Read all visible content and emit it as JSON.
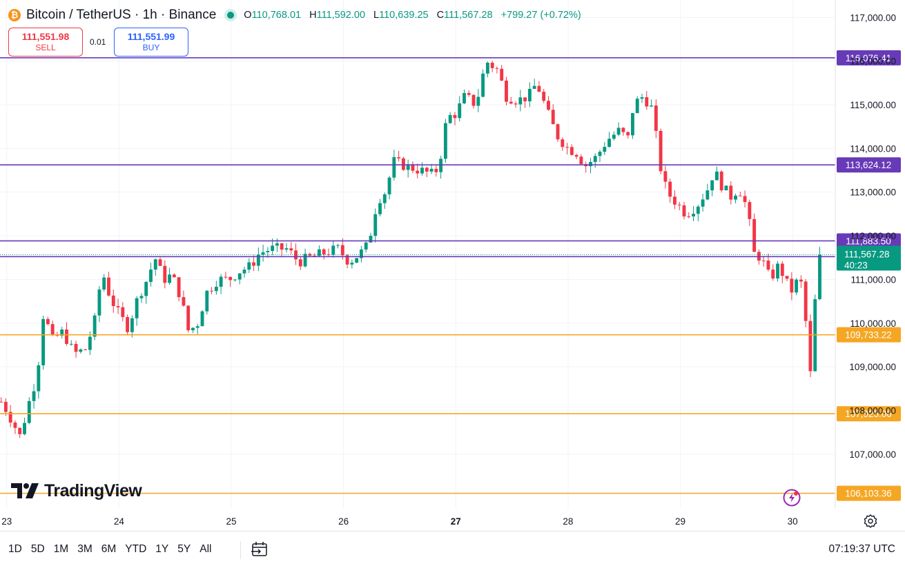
{
  "header": {
    "title": "Bitcoin / TetherUS · 1h · Binance",
    "o_label": "O",
    "o_value": "110,768.01",
    "h_label": "H",
    "h_value": "111,592.00",
    "l_label": "L",
    "l_value": "110,639.25",
    "c_label": "C",
    "c_value": "111,567.28",
    "change": "+799.27 (+0.72%)",
    "logo_glyph": "₿"
  },
  "trade": {
    "sell_price": "111,551.98",
    "sell_label": "SELL",
    "spread": "0.01",
    "buy_price": "111,551.99",
    "buy_label": "BUY"
  },
  "bottom": {
    "ranges": [
      "1D",
      "5D",
      "1M",
      "3M",
      "6M",
      "YTD",
      "1Y",
      "5Y",
      "All"
    ],
    "time": "07:19:37 UTC"
  },
  "watermark": "TradingView",
  "icons": [
    "bitcoin-icon",
    "calendar-goto-icon",
    "settings-icon",
    "flash-icon",
    "tradingview-logo-icon"
  ],
  "colors": {
    "up": "#089981",
    "down": "#f23645",
    "purple": "#673ab7",
    "orange": "#f5a623",
    "grid": "#f0f3fa"
  },
  "chart_data": {
    "type": "candlestick",
    "interval": "1h",
    "y_axis": {
      "ticks": [
        107000,
        108000,
        109000,
        110000,
        111000,
        112000,
        113000,
        114000,
        115000,
        116000,
        117000
      ],
      "tick_labels": [
        "107,000.00",
        "108,000.00",
        "109,000.00",
        "110,000.00",
        "111,000.00",
        "112,000.00",
        "113,000.00",
        "114,000.00",
        "115,000.00",
        "116,000.00",
        "117,000.00"
      ],
      "range": [
        105750,
        117400
      ]
    },
    "x_axis": {
      "ticks": [
        23,
        24,
        25,
        26,
        27,
        28,
        29,
        30
      ],
      "tick_labels": [
        "23",
        "24",
        "25",
        "26",
        "27",
        "28",
        "29",
        "30"
      ],
      "bold": [
        "27"
      ],
      "range": [
        22.94,
        30.38
      ]
    },
    "levels": [
      {
        "value": 116076.41,
        "label": "116,076.41",
        "color": "purple"
      },
      {
        "value": 113624.12,
        "label": "113,624.12",
        "color": "purple"
      },
      {
        "value": 111883.5,
        "label": "111,883.50",
        "color": "purple"
      },
      {
        "value": 111522.3,
        "label": "111,522.30",
        "color": "purple"
      },
      {
        "value": 109733.22,
        "label": "109,733.22",
        "color": "orange"
      },
      {
        "value": 107925.06,
        "label": "107,925.06",
        "color": "orange"
      },
      {
        "value": 106103.36,
        "label": "106,103.36",
        "color": "orange"
      }
    ],
    "last_price": {
      "value": 111567.28,
      "label": "111,567.28",
      "countdown": "40:23"
    },
    "anchors": [
      [
        22.95,
        108200
      ],
      [
        23.0,
        108000
      ],
      [
        23.06,
        107700
      ],
      [
        23.12,
        107400
      ],
      [
        23.2,
        108200
      ],
      [
        23.27,
        108800
      ],
      [
        23.33,
        110300
      ],
      [
        23.4,
        109600
      ],
      [
        23.5,
        109800
      ],
      [
        23.6,
        109300
      ],
      [
        23.7,
        109400
      ],
      [
        23.78,
        110000
      ],
      [
        23.85,
        111200
      ],
      [
        23.92,
        110600
      ],
      [
        24.0,
        110200
      ],
      [
        24.08,
        109900
      ],
      [
        24.17,
        110600
      ],
      [
        24.25,
        111000
      ],
      [
        24.32,
        111500
      ],
      [
        24.4,
        111000
      ],
      [
        24.47,
        111100
      ],
      [
        24.55,
        110600
      ],
      [
        24.62,
        109800
      ],
      [
        24.7,
        110000
      ],
      [
        24.78,
        110700
      ],
      [
        24.88,
        111000
      ],
      [
        24.98,
        111000
      ],
      [
        25.08,
        111200
      ],
      [
        25.17,
        111300
      ],
      [
        25.25,
        111600
      ],
      [
        25.35,
        111700
      ],
      [
        25.5,
        111700
      ],
      [
        25.6,
        111400
      ],
      [
        25.7,
        111500
      ],
      [
        25.82,
        111600
      ],
      [
        25.95,
        111700
      ],
      [
        26.05,
        111400
      ],
      [
        26.15,
        111600
      ],
      [
        26.22,
        111800
      ],
      [
        26.3,
        112800
      ],
      [
        26.37,
        113000
      ],
      [
        26.45,
        113700
      ],
      [
        26.55,
        113600
      ],
      [
        26.68,
        113500
      ],
      [
        26.8,
        113400
      ],
      [
        26.85,
        113600
      ],
      [
        26.92,
        114700
      ],
      [
        27.0,
        114800
      ],
      [
        27.08,
        115200
      ],
      [
        27.18,
        115000
      ],
      [
        27.27,
        116000
      ],
      [
        27.37,
        115800
      ],
      [
        27.45,
        115200
      ],
      [
        27.55,
        115100
      ],
      [
        27.65,
        115200
      ],
      [
        27.72,
        115500
      ],
      [
        27.82,
        114800
      ],
      [
        27.9,
        114300
      ],
      [
        28.0,
        114000
      ],
      [
        28.08,
        113900
      ],
      [
        28.15,
        113600
      ],
      [
        28.25,
        113800
      ],
      [
        28.35,
        114200
      ],
      [
        28.45,
        114400
      ],
      [
        28.55,
        114200
      ],
      [
        28.58,
        115000
      ],
      [
        28.67,
        115200
      ],
      [
        28.75,
        114900
      ],
      [
        28.82,
        113600
      ],
      [
        28.88,
        113000
      ],
      [
        28.95,
        112800
      ],
      [
        29.05,
        112500
      ],
      [
        29.15,
        112700
      ],
      [
        29.25,
        113100
      ],
      [
        29.3,
        113500
      ],
      [
        29.38,
        113100
      ],
      [
        29.45,
        112900
      ],
      [
        29.52,
        113100
      ],
      [
        29.6,
        112600
      ],
      [
        29.65,
        111600
      ],
      [
        29.72,
        111500
      ],
      [
        29.8,
        111000
      ],
      [
        29.87,
        111300
      ],
      [
        29.92,
        111100
      ],
      [
        29.98,
        110700
      ],
      [
        30.05,
        111000
      ],
      [
        30.1,
        110800
      ],
      [
        30.15,
        108500
      ],
      [
        30.2,
        110500
      ],
      [
        30.26,
        111567
      ]
    ]
  }
}
